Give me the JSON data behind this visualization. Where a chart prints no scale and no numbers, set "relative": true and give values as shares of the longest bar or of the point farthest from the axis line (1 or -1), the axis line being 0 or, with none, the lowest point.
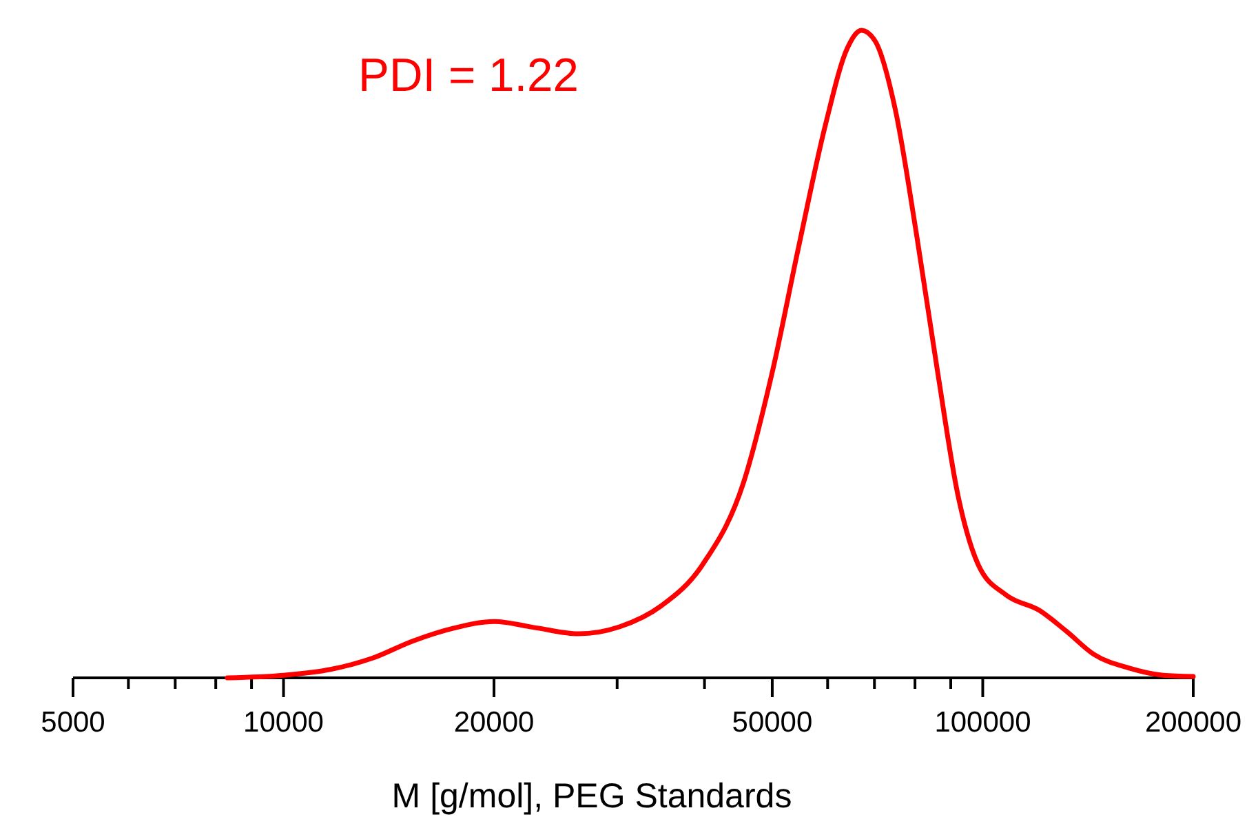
{
  "chart_data": {
    "type": "line",
    "relative": true,
    "log": "x",
    "xlabel": "M [g/mol], PEG Standards",
    "annotations": [
      "PDI = 1.22"
    ],
    "xlim": [
      5000,
      200000
    ],
    "xticks": [
      5000,
      {
        "value": 6000,
        "label": null
      },
      {
        "value": 7000,
        "label": null
      },
      {
        "value": 8000,
        "label": null
      },
      {
        "value": 9000,
        "label": null
      },
      10000,
      20000,
      {
        "value": 30000,
        "label": null
      },
      {
        "value": 40000,
        "label": null
      },
      50000,
      {
        "value": 60000,
        "label": null
      },
      {
        "value": 70000,
        "label": null
      },
      {
        "value": 80000,
        "label": null
      },
      {
        "value": 90000,
        "label": null
      },
      100000,
      200000
    ],
    "tick_labels": "x",
    "series": [
      {
        "color": "#ff0000",
        "x": [
          8310,
          10000,
          11670,
          13370,
          15320,
          17550,
          20000,
          23050,
          26400,
          30270,
          34670,
          39700,
          45500,
          50000,
          54500,
          59600,
          64000,
          67100,
          70200,
          75000,
          80400,
          86200,
          92200,
          98600,
          108000,
          120600,
          131700,
          144300,
          162000,
          181000,
          200000
        ],
        "values": [
          0,
          0.004,
          0.013,
          0.03,
          0.057,
          0.077,
          0.087,
          0.077,
          0.068,
          0.079,
          0.111,
          0.174,
          0.302,
          0.472,
          0.664,
          0.855,
          0.972,
          1.0,
          0.983,
          0.877,
          0.685,
          0.472,
          0.281,
          0.174,
          0.128,
          0.104,
          0.072,
          0.036,
          0.015,
          0.004,
          0.002
        ]
      }
    ]
  }
}
